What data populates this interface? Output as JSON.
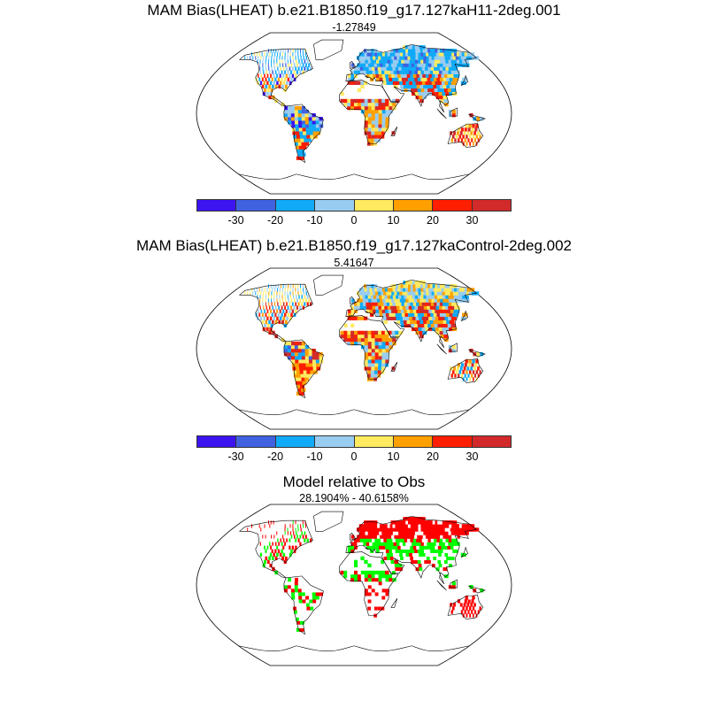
{
  "panels": [
    {
      "title": "MAM Bias(LHEAT) b.e21.B1850.f19_g17.127kaH11-2deg.001",
      "subtitle": "-1.27849"
    },
    {
      "title": "MAM Bias(LHEAT) b.e21.B1850.f19_g17.127kaControl-2deg.002",
      "subtitle": "5.41647"
    },
    {
      "title": "Model relative to Obs",
      "subtitle": "28.1904% - 40.6158%"
    }
  ],
  "colorbar": {
    "labels": [
      "-30",
      "-20",
      "-10",
      "0",
      "10",
      "20",
      "30"
    ],
    "colors": [
      "#3c14f0",
      "#4062e0",
      "#10aaf8",
      "#98ccf0",
      "#ffea60",
      "#ffa000",
      "#ff1e00",
      "#d22a2a"
    ]
  },
  "relative_colors": {
    "worse": "#ff0000",
    "better": "#00ff00",
    "none": "#ffffff"
  }
}
